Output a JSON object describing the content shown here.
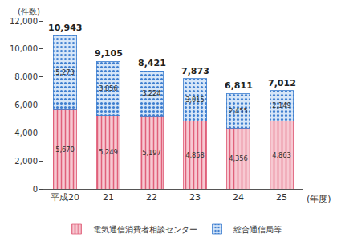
{
  "chart_data": {
    "type": "bar",
    "stacked": true,
    "data_labels": true,
    "grid": false,
    "legend": "bottom",
    "ylabel": "(件数)",
    "xlabel": "(年度)",
    "categories": [
      "平成20",
      "21",
      "22",
      "23",
      "24",
      "25"
    ],
    "ylim": [
      0,
      12000
    ],
    "yticks": [
      0,
      {
        "value": 2000,
        "label": "2,000"
      },
      {
        "value": 4000,
        "label": "4,000"
      },
      {
        "value": 6000,
        "label": "6,000"
      },
      {
        "value": 8000,
        "label": "8,000"
      },
      {
        "value": 10000,
        "label": "10,000"
      },
      {
        "value": 12000,
        "label": "12,000"
      }
    ],
    "series": [
      {
        "name": "電気通信消費者相談センター",
        "color": "#e0607a",
        "values": [
          5670,
          5249,
          5197,
          4858,
          4356,
          4863
        ],
        "value_labels": [
          "5,670",
          "5,249",
          "5,197",
          "4,858",
          "4,356",
          "4,863"
        ]
      },
      {
        "name": "総合通信局等",
        "color": "#3f7fd0",
        "values": [
          5273,
          3856,
          3224,
          3015,
          2455,
          2149
        ],
        "value_labels": [
          "5,273",
          "3,856",
          "3,224",
          "3,015",
          "2,455",
          "2,149"
        ]
      }
    ],
    "totals": [
      10943,
      9105,
      8421,
      7873,
      6811,
      7012
    ],
    "total_labels": [
      "10,943",
      "9,105",
      "8,421",
      "7,873",
      "6,811",
      "7,012"
    ]
  }
}
